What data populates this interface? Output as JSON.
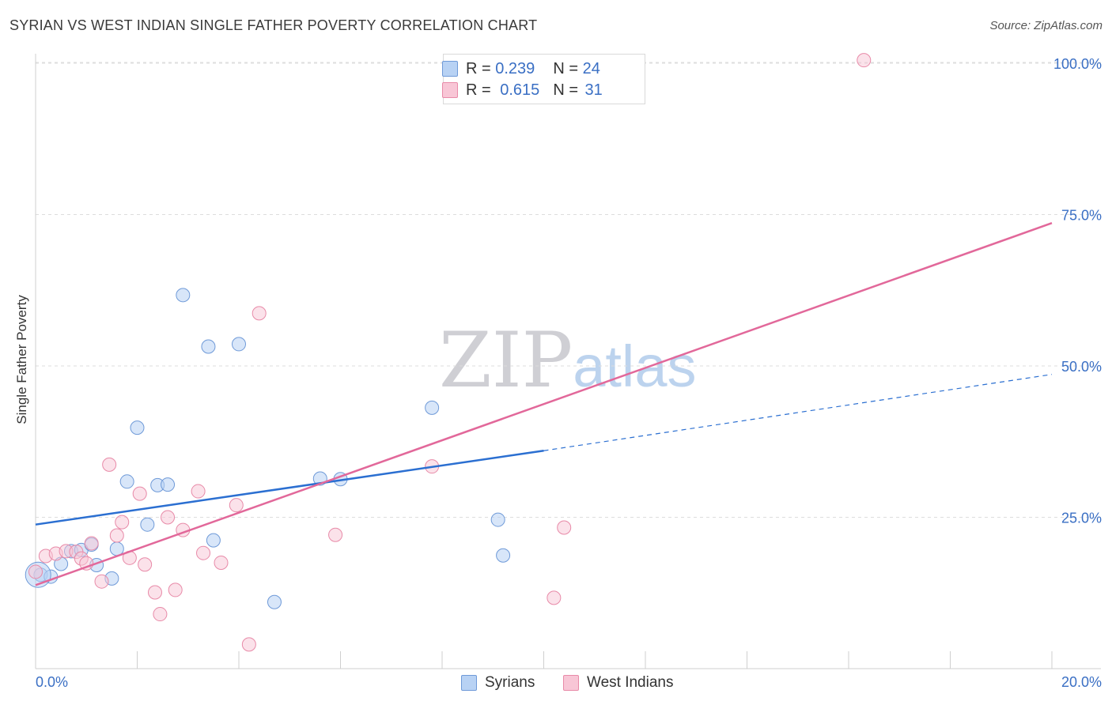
{
  "header": {
    "title": "SYRIAN VS WEST INDIAN SINGLE FATHER POVERTY CORRELATION CHART",
    "source": "Source: ZipAtlas.com"
  },
  "watermark": {
    "part1": "ZIP",
    "part2": "atlas"
  },
  "legend": {
    "syrians": {
      "r_label": "R =",
      "r_value": "0.239",
      "n_label": "N =",
      "n_value": "24"
    },
    "west_indians": {
      "r_label": "R =",
      "r_value": "0.615",
      "n_label": "N =",
      "n_value": "31"
    },
    "bottom": [
      "Syrians",
      "West Indians"
    ]
  },
  "colors": {
    "syrians_fill": "#b8d2f4",
    "syrians_stroke": "#6f9ad8",
    "syrians_line": "#2b6fd1",
    "west_indians_fill": "#f8c6d6",
    "west_indians_stroke": "#e88aa8",
    "west_indians_line": "#e2689a",
    "tick_label": "#3a6fc4",
    "grid": "#dddddd"
  },
  "chart_data": {
    "type": "scatter",
    "title": "SYRIAN VS WEST INDIAN SINGLE FATHER POVERTY CORRELATION CHART",
    "xlabel": "",
    "ylabel": "Single Father Poverty",
    "xlim": [
      0,
      20
    ],
    "ylim": [
      0,
      105
    ],
    "x_tick_labels": [
      "0.0%",
      "20.0%"
    ],
    "y_ticks": [
      25,
      50,
      75,
      100
    ],
    "y_tick_labels": [
      "25.0%",
      "50.0%",
      "75.0%",
      "100.0%"
    ],
    "grid": true,
    "legend_position": "top-center",
    "series": [
      {
        "name": "Syrians",
        "r": 0.239,
        "n": 24,
        "points": [
          [
            0.1,
            15.5
          ],
          [
            0.3,
            15.2
          ],
          [
            0.5,
            17.3
          ],
          [
            0.7,
            19.4
          ],
          [
            0.9,
            19.6
          ],
          [
            1.1,
            20.5
          ],
          [
            1.2,
            17.1
          ],
          [
            1.5,
            14.9
          ],
          [
            1.6,
            19.8
          ],
          [
            1.8,
            30.9
          ],
          [
            2.0,
            39.8
          ],
          [
            2.2,
            23.8
          ],
          [
            2.4,
            30.3
          ],
          [
            2.6,
            30.4
          ],
          [
            2.9,
            61.7
          ],
          [
            3.4,
            53.2
          ],
          [
            3.5,
            21.2
          ],
          [
            4.0,
            53.6
          ],
          [
            4.7,
            11.0
          ],
          [
            5.6,
            31.4
          ],
          [
            6.0,
            31.3
          ],
          [
            7.8,
            43.1
          ],
          [
            9.1,
            24.6
          ],
          [
            9.2,
            18.7
          ]
        ],
        "trend": {
          "x_start": 0,
          "y_start": 23.8,
          "x_solid_end": 10,
          "y_solid_end": 36.0,
          "x_end": 20,
          "y_end": 48.6
        }
      },
      {
        "name": "West Indians",
        "r": 0.615,
        "n": 31,
        "points": [
          [
            0.2,
            18.6
          ],
          [
            0.4,
            19.0
          ],
          [
            0.6,
            19.4
          ],
          [
            0.8,
            19.3
          ],
          [
            0.9,
            18.2
          ],
          [
            1.0,
            17.4
          ],
          [
            1.1,
            20.7
          ],
          [
            1.3,
            14.4
          ],
          [
            1.45,
            33.7
          ],
          [
            1.6,
            22.0
          ],
          [
            1.7,
            24.2
          ],
          [
            1.85,
            18.3
          ],
          [
            2.05,
            28.9
          ],
          [
            2.15,
            17.2
          ],
          [
            2.35,
            12.6
          ],
          [
            2.45,
            9.0
          ],
          [
            2.6,
            25.0
          ],
          [
            2.75,
            13.0
          ],
          [
            2.9,
            22.9
          ],
          [
            3.2,
            29.3
          ],
          [
            3.3,
            19.1
          ],
          [
            3.65,
            17.5
          ],
          [
            3.95,
            27.0
          ],
          [
            4.2,
            4.0
          ],
          [
            4.4,
            58.7
          ],
          [
            5.9,
            22.1
          ],
          [
            7.8,
            33.4
          ],
          [
            10.2,
            11.7
          ],
          [
            10.4,
            23.3
          ],
          [
            16.3,
            100.5
          ],
          [
            0.0,
            16.0
          ]
        ],
        "trend": {
          "x_start": 0,
          "y_start": 13.8,
          "x_end": 20,
          "y_end": 73.6
        }
      }
    ]
  }
}
